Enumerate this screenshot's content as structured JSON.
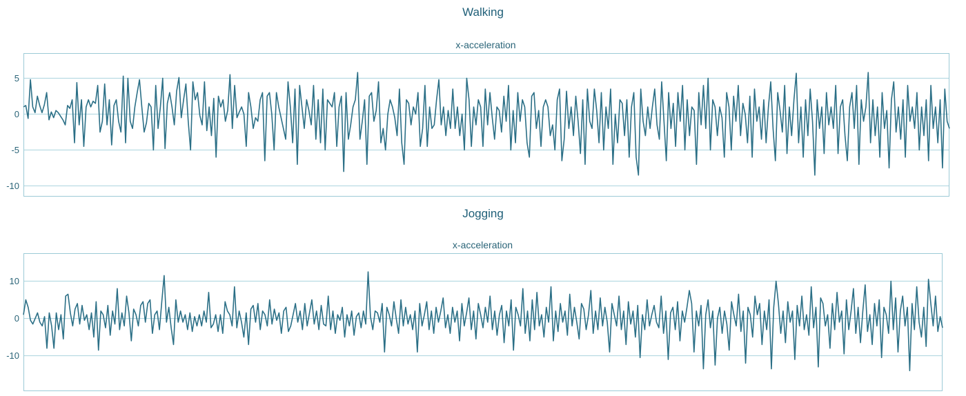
{
  "colors": {
    "line": "#2b6f86",
    "frame": "#9ccad6",
    "grid": "#a9d3dd",
    "text": "#2a6478"
  },
  "chart_data": [
    {
      "type": "line",
      "suptitle": "Walking",
      "title": "x-acceleration",
      "xlabel": "",
      "ylabel": "",
      "ylim": [
        -11.5,
        8.5
      ],
      "yticks": [
        5,
        0,
        -5,
        -10
      ],
      "grid": "horizontal",
      "series": [
        {
          "x_range": [
            0,
            400
          ],
          "values": [
            1.0,
            1.2,
            -0.6,
            4.8,
            1.0,
            0.2,
            2.5,
            1.2,
            0.2,
            1.3,
            3.0,
            -0.8,
            0.3,
            -0.5,
            0.5,
            0.2,
            -0.3,
            -0.8,
            -1.5,
            1.2,
            0.8,
            2.0,
            -4.0,
            4.4,
            -1.5,
            2.0,
            -4.5,
            1.0,
            2.0,
            1.0,
            1.8,
            1.5,
            4.0,
            -2.5,
            -1.0,
            4.2,
            -1.5,
            2.0,
            -4.3,
            1.2,
            2.0,
            -1.0,
            -2.5,
            5.3,
            -4.0,
            5.0,
            -1.0,
            -2.0,
            1.0,
            3.0,
            4.8,
            1.0,
            -2.5,
            -1.2,
            1.5,
            1.0,
            -5.0,
            4.0,
            -2.0,
            1.0,
            5.0,
            -4.8,
            1.5,
            3.0,
            1.0,
            -1.5,
            3.2,
            5.1,
            -0.5,
            2.0,
            4.2,
            -1.0,
            -5.0,
            4.5,
            2.0,
            3.0,
            -0.2,
            -1.5,
            4.5,
            -2.3,
            1.0,
            -3.0,
            2.2,
            -6.0,
            2.5,
            1.0,
            2.0,
            -1.0,
            0.5,
            5.5,
            -2.0,
            4.0,
            -0.5,
            0.3,
            1.0,
            0.0,
            -4.5,
            3.0,
            1.0,
            -2.0,
            -0.5,
            -1.0,
            2.0,
            3.0,
            -6.5,
            2.5,
            3.0,
            0.0,
            -5.0,
            3.0,
            1.0,
            -0.5,
            -2.0,
            -3.5,
            4.5,
            1.0,
            -4.0,
            3.5,
            -7.0,
            4.0,
            1.0,
            -2.0,
            2.0,
            0.5,
            -1.5,
            4.0,
            -3.5,
            2.0,
            -4.0,
            3.5,
            -5.0,
            2.0,
            1.5,
            1.0,
            3.0,
            -4.5,
            1.0,
            2.5,
            -8.0,
            3.0,
            -3.5,
            -1.5,
            1.0,
            2.0,
            5.8,
            -3.5,
            -1.0,
            2.0,
            -7.0,
            2.5,
            3.0,
            -1.0,
            0.5,
            4.5,
            -4.0,
            -2.0,
            -5.0,
            0.0,
            2.0,
            1.0,
            -0.5,
            -3.0,
            3.5,
            -4.0,
            -7.0,
            2.0,
            1.5,
            -1.5,
            1.0,
            0.0,
            3.0,
            -4.5,
            -2.0,
            4.0,
            -4.5,
            1.0,
            -2.0,
            -1.5,
            2.0,
            4.8,
            -1.5,
            1.0,
            -3.0,
            0.5,
            -2.0,
            3.5,
            -2.0,
            1.0,
            -3.0,
            0.0,
            -5.0,
            5.0,
            2.0,
            -4.5,
            1.0,
            -1.5,
            2.0,
            1.0,
            -4.5,
            3.5,
            -1.5,
            3.0,
            -0.5,
            -3.5,
            1.0,
            0.5,
            -2.5,
            2.5,
            -1.0,
            4.0,
            -5.0,
            0.5,
            -4.0,
            3.0,
            -1.0,
            2.0,
            1.0,
            -4.0,
            -6.0,
            2.5,
            3.0,
            -2.0,
            0.5,
            -4.5,
            1.0,
            2.0,
            1.0,
            -3.0,
            -1.5,
            -5.0,
            2.0,
            3.5,
            -6.5,
            -3.5,
            3.2,
            -2.0,
            1.0,
            -3.0,
            2.5,
            -1.0,
            -5.5,
            2.0,
            -7.0,
            3.5,
            -1.0,
            -2.0,
            3.5,
            0.5,
            -4.0,
            3.0,
            -5.0,
            1.0,
            -2.0,
            3.5,
            -7.0,
            0.0,
            -4.0,
            2.0,
            1.5,
            -3.0,
            2.0,
            -6.0,
            1.0,
            3.0,
            -6.0,
            -8.5,
            3.5,
            -1.0,
            -3.0,
            1.0,
            -2.0,
            1.0,
            3.5,
            -1.5,
            -3.5,
            4.5,
            -1.0,
            -6.5,
            3.0,
            -2.0,
            1.5,
            -4.5,
            3.0,
            -1.0,
            4.0,
            -5.0,
            2.0,
            -3.0,
            1.0,
            0.5,
            -7.0,
            3.0,
            -1.5,
            4.0,
            -2.0,
            5.0,
            -5.0,
            2.0,
            1.0,
            -3.0,
            1.0,
            -0.5,
            -6.0,
            3.0,
            1.0,
            -5.0,
            2.5,
            -1.0,
            4.0,
            -3.0,
            1.5,
            0.0,
            -4.0,
            2.5,
            -6.0,
            3.5,
            -1.0,
            1.0,
            -3.5,
            2.0,
            -4.0,
            1.0,
            4.5,
            -2.0,
            -6.5,
            3.0,
            0.5,
            -2.5,
            4.0,
            -5.5,
            1.0,
            -3.0,
            2.0,
            5.7,
            -4.0,
            1.0,
            -6.0,
            2.0,
            -3.0,
            3.5,
            -1.0,
            -8.5,
            2.0,
            -2.0,
            1.0,
            -5.5,
            3.0,
            -1.5,
            1.0,
            -2.0,
            4.0,
            -5.5,
            1.0,
            2.0,
            -3.0,
            -6.5,
            1.0,
            3.0,
            -2.0,
            4.0,
            -7.0,
            2.0,
            -1.0,
            1.0,
            5.8,
            -4.0,
            2.0,
            -3.0,
            1.0,
            -6.0,
            3.0,
            -2.0,
            0.5,
            -7.5,
            2.0,
            4.5,
            -2.5,
            1.0,
            -3.5,
            2.0,
            -6.0,
            4.0,
            -1.0,
            1.0,
            -2.0,
            3.0,
            -5.0,
            1.0,
            -3.0,
            2.0,
            -6.5,
            4.0,
            -2.0,
            1.0,
            -4.0,
            2.0,
            -7.5,
            3.5,
            -1.0,
            -2.0
          ]
        }
      ]
    },
    {
      "type": "line",
      "suptitle": "Jogging",
      "title": "x-acceleration",
      "xlabel": "",
      "ylabel": "",
      "ylim": [
        -19.5,
        17.5
      ],
      "yticks": [
        10,
        0,
        -10
      ],
      "grid": "horizontal",
      "series": [
        {
          "x_range": [
            0,
            400
          ],
          "values": [
            1.0,
            5.0,
            3.0,
            -0.5,
            -1.5,
            0.0,
            1.5,
            -1.0,
            -2.0,
            0.5,
            -8.0,
            1.5,
            -2.0,
            -8.0,
            1.5,
            -3.0,
            1.0,
            -5.5,
            6.0,
            6.5,
            1.5,
            -2.0,
            2.5,
            4.0,
            -1.5,
            3.5,
            -0.5,
            1.0,
            -3.0,
            1.5,
            -5.0,
            4.5,
            -8.5,
            2.0,
            1.0,
            -2.5,
            3.5,
            -4.5,
            2.0,
            -1.5,
            8.0,
            -3.0,
            1.5,
            -2.0,
            6.0,
            1.5,
            -6.0,
            2.5,
            1.0,
            -2.0,
            3.5,
            4.5,
            -1.0,
            4.0,
            5.0,
            -4.0,
            1.0,
            2.0,
            -3.0,
            4.5,
            11.5,
            -1.0,
            3.0,
            -2.5,
            -7.0,
            5.0,
            -1.0,
            2.0,
            -1.0,
            1.0,
            -3.0,
            1.5,
            -3.5,
            0.5,
            -2.0,
            1.0,
            -2.0,
            2.0,
            -1.0,
            7.0,
            -2.5,
            -1.5,
            1.0,
            -3.5,
            1.0,
            -4.0,
            4.5,
            2.0,
            1.0,
            -2.0,
            8.5,
            -2.5,
            2.0,
            -1.0,
            -5.0,
            1.5,
            -7.0,
            2.5,
            3.5,
            -1.0,
            4.0,
            -3.0,
            2.0,
            1.0,
            -2.0,
            5.0,
            -1.5,
            2.5,
            -0.5,
            1.5,
            -4.0,
            2.0,
            3.0,
            -3.5,
            -2.0,
            1.0,
            4.0,
            -1.0,
            2.0,
            -3.0,
            4.0,
            -2.0,
            1.5,
            5.0,
            -1.5,
            2.0,
            -3.0,
            3.5,
            -1.5,
            -2.0,
            6.0,
            -3.0,
            2.0,
            -4.0,
            1.0,
            -0.5,
            3.0,
            -5.0,
            1.0,
            -2.0,
            2.0,
            -4.5,
            0.5,
            1.5,
            -2.5,
            2.0,
            -1.5,
            12.5,
            0.5,
            -3.0,
            2.0,
            1.5,
            -1.0,
            4.0,
            -9.0,
            3.0,
            1.0,
            -2.0,
            4.5,
            0.0,
            -4.0,
            5.0,
            -2.0,
            3.0,
            -1.5,
            1.0,
            -3.0,
            2.0,
            -9.0,
            4.0,
            -2.0,
            1.0,
            4.5,
            -3.0,
            2.0,
            -4.0,
            3.0,
            -1.0,
            2.0,
            5.5,
            -2.5,
            1.0,
            -4.0,
            3.0,
            -1.0,
            2.0,
            -6.0,
            4.0,
            -2.0,
            1.5,
            5.5,
            -3.0,
            2.0,
            -5.5,
            4.0,
            1.0,
            -2.5,
            3.0,
            -1.0,
            6.0,
            -3.0,
            2.0,
            -4.5,
            1.0,
            3.5,
            -6.5,
            2.0,
            -2.0,
            5.0,
            -8.5,
            3.0,
            1.0,
            -2.0,
            8.0,
            -4.0,
            2.0,
            -6.0,
            5.0,
            -3.0,
            7.0,
            -2.0,
            1.0,
            -5.0,
            3.0,
            -1.0,
            8.5,
            -6.0,
            2.0,
            -3.5,
            4.0,
            -1.0,
            2.0,
            -4.5,
            6.5,
            -2.0,
            3.0,
            -1.0,
            -5.5,
            4.0,
            2.5,
            -3.0,
            1.0,
            7.5,
            -4.0,
            2.0,
            -3.0,
            5.5,
            -2.0,
            3.0,
            -1.0,
            -9.0,
            4.0,
            1.0,
            -2.0,
            6.0,
            -3.0,
            2.0,
            -7.0,
            4.5,
            -1.5,
            2.0,
            -5.0,
            3.5,
            -10.5,
            1.0,
            -3.0,
            5.0,
            -2.0,
            1.0,
            3.5,
            -1.0,
            -2.5,
            6.0,
            -4.0,
            2.0,
            -11.0,
            1.5,
            3.0,
            -3.0,
            4.5,
            -6.0,
            2.0,
            -1.0,
            3.0,
            7.5,
            4.0,
            -9.0,
            2.0,
            -2.0,
            3.5,
            -13.5,
            1.0,
            5.0,
            -2.5,
            2.0,
            -12.5,
            0.0,
            3.0,
            -4.0,
            2.0,
            -1.5,
            -8.5,
            4.5,
            1.0,
            -2.0,
            6.5,
            -3.5,
            2.0,
            -12.0,
            3.0,
            1.0,
            -5.0,
            6.0,
            1.0,
            4.0,
            -7.0,
            2.0,
            -3.0,
            5.0,
            -13.5,
            3.0,
            10.0,
            4.0,
            -4.0,
            2.0,
            -6.5,
            4.5,
            -1.0,
            2.0,
            -11.0,
            3.5,
            -2.0,
            6.0,
            -3.0,
            1.0,
            -4.5,
            8.5,
            -2.5,
            3.0,
            -13.0,
            5.5,
            4.0,
            -2.0,
            1.0,
            -8.0,
            4.0,
            -3.0,
            7.0,
            -1.0,
            2.0,
            -9.5,
            5.0,
            -3.0,
            2.0,
            8.0,
            -4.0,
            3.0,
            -6.5,
            2.0,
            9.0,
            -3.5,
            1.0,
            -7.0,
            4.0,
            -2.0,
            5.0,
            -10.5,
            3.0,
            1.0,
            -4.0,
            10.0,
            -3.0,
            5.5,
            -9.0,
            2.0,
            6.0,
            -2.0,
            3.0,
            -14.0,
            4.0,
            -3.0,
            8.5,
            -1.0,
            -5.0,
            3.0,
            -7.5,
            10.5,
            4.0,
            -2.0,
            6.0,
            -3.5,
            0.5,
            -2.5
          ]
        }
      ]
    }
  ]
}
